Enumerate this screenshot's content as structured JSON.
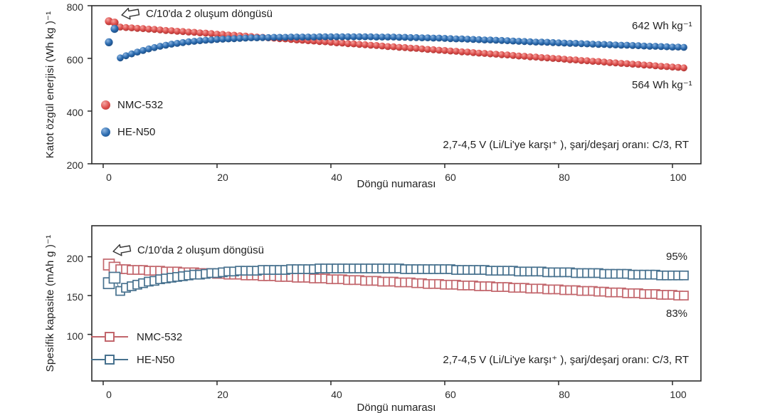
{
  "colors": {
    "nmc532_sphere": "#dd4f4d",
    "nmc532_sphere_light": "#f4a6a2",
    "nmc532_sphere_dark": "#a93230",
    "hen50_sphere": "#2c6cb0",
    "hen50_sphere_light": "#8fb6e0",
    "hen50_sphere_dark": "#1b4a80",
    "nmc532_square": "#c2666c",
    "hen50_square": "#47718e",
    "axis": "#2b2b2b",
    "text": "#222222"
  },
  "chart_data": [
    {
      "type": "scatter",
      "marker": "filled-circle",
      "title": "",
      "xlabel": "Döngü numarası",
      "ylabel": "Katot özgül enerjisi (Wh kg )⁻¹",
      "x_ticks": [
        0,
        20,
        40,
        60,
        80,
        100
      ],
      "y_ticks": [
        200,
        400,
        600,
        800
      ],
      "xlim": [
        -2,
        105
      ],
      "ylim": [
        200,
        800
      ],
      "x_note": "x = cycle number; values arrays are per cycle, cycle 1..102",
      "annotation_formation": "C/10'da 2 oluşum döngüsü",
      "annotation_blue_end": "642 Wh kg⁻¹",
      "annotation_red_end": "564 Wh kg⁻¹",
      "annotation_conditions": "2,7-4,5 V (Li/Li'ye karşı⁺ ), şarj/deşarj oranı: C/3, RT",
      "legend_position": "left-middle",
      "series": [
        {
          "name": "NMC-532",
          "color_key": "nmc532_sphere",
          "values": [
            741,
            736,
            719,
            717,
            716,
            714,
            713,
            711,
            710,
            708,
            706,
            705,
            703,
            702,
            700,
            699,
            697,
            696,
            694,
            692,
            691,
            689,
            688,
            686,
            685,
            683,
            681,
            680,
            678,
            677,
            675,
            674,
            672,
            670,
            669,
            667,
            666,
            664,
            663,
            661,
            659,
            658,
            656,
            655,
            653,
            652,
            650,
            649,
            647,
            645,
            644,
            642,
            641,
            639,
            638,
            636,
            634,
            633,
            631,
            630,
            628,
            627,
            625,
            624,
            622,
            620,
            619,
            617,
            616,
            614,
            613,
            611,
            609,
            608,
            606,
            605,
            603,
            602,
            600,
            599,
            597,
            595,
            594,
            592,
            591,
            589,
            588,
            586,
            584,
            583,
            581,
            580,
            578,
            577,
            575,
            574,
            572,
            570,
            569,
            567,
            566,
            564
          ]
        },
        {
          "name": "HE-N50",
          "color_key": "hen50_sphere",
          "values": [
            661,
            712,
            602,
            610,
            617,
            624,
            630,
            636,
            641,
            646,
            650,
            654,
            657,
            660,
            663,
            665,
            667,
            669,
            670,
            672,
            673,
            674,
            675,
            676,
            677,
            678,
            678,
            679,
            679,
            680,
            680,
            680,
            681,
            681,
            681,
            681,
            681,
            682,
            682,
            682,
            682,
            682,
            682,
            682,
            682,
            682,
            682,
            681,
            681,
            681,
            681,
            680,
            680,
            679,
            679,
            678,
            678,
            677,
            677,
            676,
            675,
            674,
            674,
            673,
            672,
            671,
            670,
            670,
            669,
            668,
            667,
            666,
            665,
            664,
            663,
            662,
            662,
            661,
            660,
            659,
            658,
            657,
            657,
            656,
            655,
            654,
            653,
            653,
            652,
            651,
            650,
            650,
            649,
            648,
            647,
            646,
            646,
            645,
            644,
            643,
            643,
            642
          ]
        }
      ]
    },
    {
      "type": "scatter",
      "marker": "open-square",
      "title": "",
      "xlabel": "Döngü numarası",
      "ylabel": "Spesifik kapasite (mAh g )⁻¹",
      "x_ticks": [
        0,
        20,
        40,
        60,
        80,
        100
      ],
      "y_ticks": [
        100,
        150,
        200
      ],
      "xlim": [
        -2,
        105
      ],
      "ylim": [
        40,
        240
      ],
      "x_note": "x = cycle number; values arrays are per cycle, cycle 1..102",
      "annotation_formation": "C/10'da 2 oluşum döngüsü",
      "annotation_blue_end": "95%",
      "annotation_red_end": "83%",
      "annotation_conditions": "2,7-4,5 V (Li/Li'ye karşı⁺ ), şarj/deşarj oranı: C/3, RT",
      "legend_position": "left-bottom",
      "series": [
        {
          "name": "NMC-532",
          "color_key": "nmc532_square",
          "values": [
            190,
            186,
            184,
            184,
            183,
            183,
            183,
            182,
            182,
            182,
            181,
            181,
            181,
            180,
            180,
            180,
            179,
            179,
            179,
            178,
            178,
            177,
            177,
            177,
            176,
            176,
            176,
            175,
            175,
            175,
            174,
            174,
            174,
            173,
            173,
            173,
            172,
            172,
            172,
            171,
            171,
            171,
            170,
            170,
            170,
            169,
            169,
            169,
            168,
            168,
            168,
            167,
            167,
            167,
            166,
            166,
            165,
            165,
            165,
            164,
            164,
            164,
            163,
            163,
            163,
            162,
            162,
            162,
            161,
            161,
            161,
            160,
            160,
            160,
            159,
            159,
            159,
            158,
            158,
            158,
            157,
            157,
            157,
            156,
            156,
            156,
            155,
            155,
            154,
            154,
            154,
            153,
            153,
            153,
            152,
            152,
            152,
            151,
            151,
            151,
            150,
            150
          ]
        },
        {
          "name": "HE-N50",
          "color_key": "hen50_square",
          "values": [
            166,
            173,
            156,
            160,
            162,
            164,
            166,
            168,
            169,
            171,
            172,
            173,
            174,
            175,
            176,
            177,
            177,
            178,
            179,
            179,
            180,
            181,
            181,
            182,
            182,
            182,
            182,
            183,
            183,
            183,
            183,
            183,
            184,
            184,
            184,
            184,
            184,
            185,
            185,
            185,
            185,
            185,
            185,
            185,
            185,
            185,
            185,
            185,
            185,
            185,
            185,
            185,
            184,
            184,
            184,
            184,
            184,
            184,
            184,
            184,
            184,
            183,
            183,
            183,
            183,
            183,
            183,
            182,
            182,
            182,
            182,
            182,
            181,
            181,
            181,
            181,
            181,
            180,
            180,
            180,
            180,
            180,
            179,
            179,
            179,
            179,
            179,
            178,
            178,
            178,
            178,
            178,
            177,
            177,
            177,
            177,
            177,
            176,
            176,
            176,
            176,
            176
          ]
        }
      ]
    }
  ]
}
